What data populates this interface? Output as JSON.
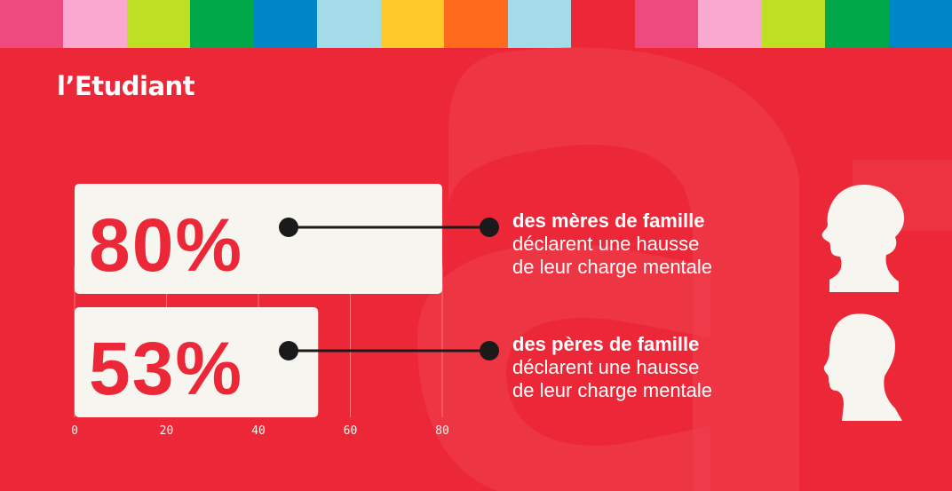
{
  "brand": {
    "logo": "l’Etudiant"
  },
  "colors": {
    "background": "#ec2838",
    "bar_fill": "#f7f5ef",
    "value_text": "#ec2838",
    "connector": "#1a1a1a"
  },
  "stripes": [
    "#ee4a80",
    "#f9a8cf",
    "#bfe022",
    "#00a84a",
    "#0086c6",
    "#a4dbe8",
    "#ffc929",
    "#ff6a1d",
    "#a4dbe8",
    "#ec2838",
    "#ee4a80",
    "#f9a8cf",
    "#bfe022",
    "#00a84a",
    "#0086c6"
  ],
  "chart_data": {
    "type": "bar",
    "orientation": "horizontal",
    "categories": [
      "mères de famille",
      "pères de famille"
    ],
    "values": [
      80,
      53
    ],
    "value_labels": [
      "80%",
      "53%"
    ],
    "xlim": [
      0,
      80
    ],
    "x_ticks": [
      "0",
      "20",
      "40",
      "60",
      "80"
    ],
    "grid": true
  },
  "rows": [
    {
      "bold": "des mères de famille",
      "line1": "déclarent une hausse",
      "line2": "de leur charge mentale",
      "icon": "woman-silhouette-icon"
    },
    {
      "bold": "des pères de famille",
      "line1": "déclarent une hausse",
      "line2": "de leur charge mentale",
      "icon": "man-silhouette-icon"
    }
  ]
}
